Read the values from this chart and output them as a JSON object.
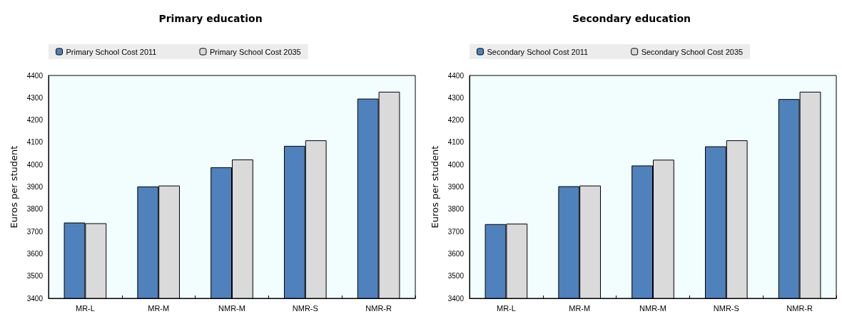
{
  "chart_data": [
    {
      "type": "bar",
      "title": "Primary education",
      "ylabel": "Euros per student",
      "categories": [
        "MR-L",
        "MR-M",
        "NMR-M",
        "NMR-S",
        "NMR-R"
      ],
      "series": [
        {
          "name": "Primary School Cost 2011",
          "color": "#4f81bd",
          "values": [
            3740,
            3902,
            3988,
            4084,
            4296
          ]
        },
        {
          "name": "Primary School Cost 2035",
          "color": "#dadada",
          "values": [
            3737,
            3906,
            4023,
            4109,
            4327
          ]
        }
      ],
      "ylim": [
        3400,
        4400
      ],
      "yticks": [
        3400,
        3500,
        3600,
        3700,
        3800,
        3900,
        4000,
        4100,
        4200,
        4300,
        4400
      ],
      "legend": "top",
      "grid": false
    },
    {
      "type": "bar",
      "title": "Secondary education",
      "ylabel": "Euros per student",
      "categories": [
        "MR-L",
        "MR-M",
        "NMR-M",
        "NMR-S",
        "NMR-R"
      ],
      "series": [
        {
          "name": "Secondary School Cost 2011",
          "color": "#4f81bd",
          "values": [
            3733,
            3903,
            3996,
            4082,
            4294
          ]
        },
        {
          "name": "Secondary School Cost 2035",
          "color": "#dadada",
          "values": [
            3735,
            3906,
            4022,
            4109,
            4327
          ]
        }
      ],
      "ylim": [
        3400,
        4400
      ],
      "yticks": [
        3400,
        3500,
        3600,
        3700,
        3800,
        3900,
        4000,
        4100,
        4200,
        4300,
        4400
      ],
      "legend": "top",
      "grid": false
    }
  ]
}
